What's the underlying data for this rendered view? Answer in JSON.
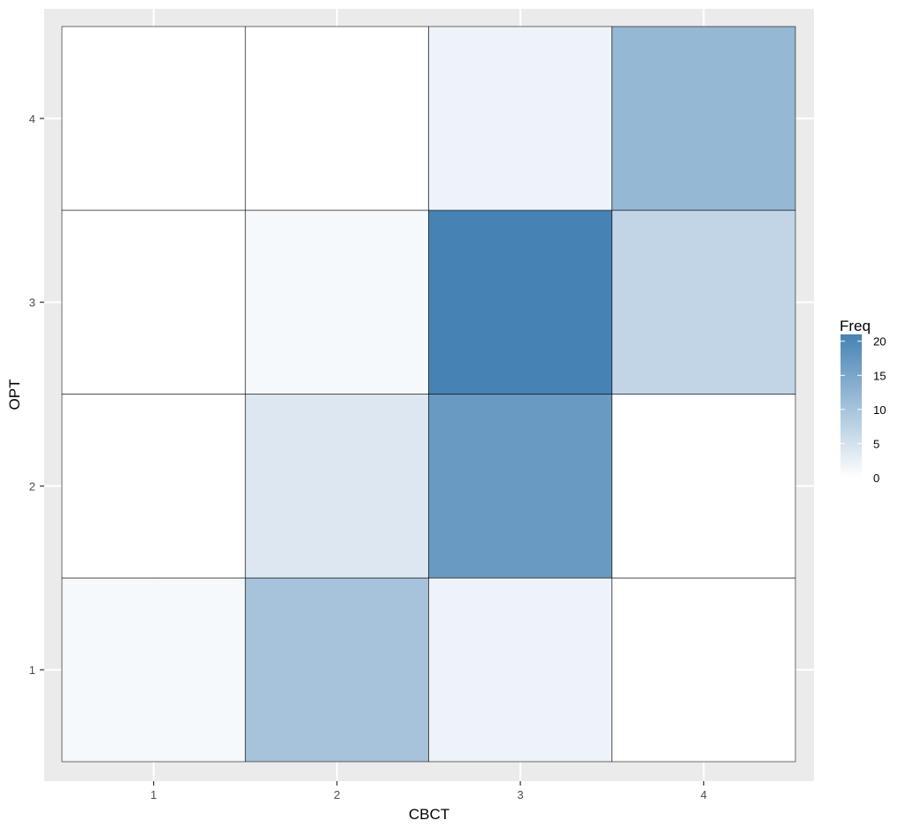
{
  "chart_data": {
    "type": "heatmap",
    "xlabel": "CBCT",
    "ylabel": "OPT",
    "x_categories": [
      "1",
      "2",
      "3",
      "4"
    ],
    "y_categories": [
      "1",
      "2",
      "3",
      "4"
    ],
    "cells": [
      {
        "x": "1",
        "y": "1",
        "value": 1
      },
      {
        "x": "2",
        "y": "1",
        "value": 10
      },
      {
        "x": "3",
        "y": "1",
        "value": 2
      },
      {
        "x": "4",
        "y": "1",
        "value": 0
      },
      {
        "x": "1",
        "y": "2",
        "value": 0
      },
      {
        "x": "2",
        "y": "2",
        "value": 4
      },
      {
        "x": "3",
        "y": "2",
        "value": 17
      },
      {
        "x": "4",
        "y": "2",
        "value": 0
      },
      {
        "x": "1",
        "y": "3",
        "value": 0
      },
      {
        "x": "2",
        "y": "3",
        "value": 1
      },
      {
        "x": "3",
        "y": "3",
        "value": 21
      },
      {
        "x": "4",
        "y": "3",
        "value": 7
      },
      {
        "x": "1",
        "y": "4",
        "value": 0
      },
      {
        "x": "2",
        "y": "4",
        "value": 0
      },
      {
        "x": "3",
        "y": "4",
        "value": 2
      },
      {
        "x": "4",
        "y": "4",
        "value": 12
      }
    ],
    "legend": {
      "title": "Freq",
      "ticks": [
        "0",
        "5",
        "10",
        "15",
        "20"
      ],
      "tick_values": [
        0,
        5,
        10,
        15,
        20
      ],
      "placement": "right"
    },
    "color_scale": {
      "low": "#ffffff",
      "high": "#4682b4",
      "min": 0,
      "max": 21
    },
    "panel_background": "#ebebeb",
    "grid_color": "#ffffff",
    "cell_border_color": "#000000",
    "grid": true
  }
}
